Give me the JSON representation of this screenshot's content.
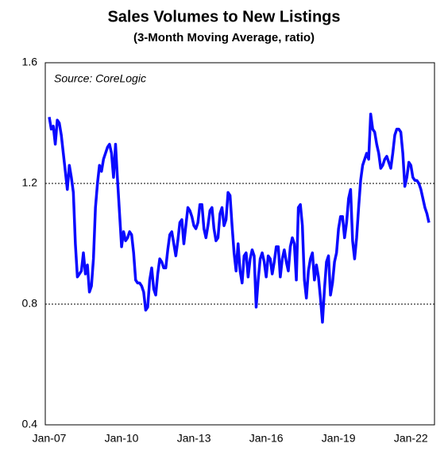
{
  "chart_data": {
    "type": "line",
    "title": "Sales Volumes to New Listings",
    "subtitle": "(3-Month Moving Average, ratio)",
    "annotation": "Source: CoreLogic",
    "color": "#0a0aff",
    "ylim": [
      0.4,
      1.6
    ],
    "yticks": [
      0.4,
      0.8,
      1.2,
      1.6
    ],
    "grid": true,
    "categories": [
      "Jan-07",
      null,
      null,
      null,
      null,
      null,
      null,
      null,
      null,
      null,
      null,
      null,
      null,
      null,
      null,
      null,
      null,
      null,
      null,
      null,
      null,
      null,
      null,
      null,
      null,
      null,
      null,
      null,
      null,
      null,
      null,
      null,
      null,
      null,
      null,
      null,
      "Jan-10",
      null,
      null,
      null,
      null,
      null,
      null,
      null,
      null,
      null,
      null,
      null,
      null,
      null,
      null,
      null,
      null,
      null,
      null,
      null,
      null,
      null,
      null,
      null,
      null,
      null,
      null,
      null,
      null,
      null,
      null,
      null,
      null,
      null,
      null,
      null,
      "Jan-13",
      null,
      null,
      null,
      null,
      null,
      null,
      null,
      null,
      null,
      null,
      null,
      null,
      null,
      null,
      null,
      null,
      null,
      null,
      null,
      null,
      null,
      null,
      null,
      null,
      null,
      null,
      null,
      null,
      null,
      null,
      null,
      null,
      null,
      null,
      null,
      "Jan-16",
      null,
      null,
      null,
      null,
      null,
      null,
      null,
      null,
      null,
      null,
      null,
      null,
      null,
      null,
      null,
      null,
      null,
      null,
      null,
      null,
      null,
      null,
      null,
      null,
      null,
      null,
      null,
      null,
      null,
      null,
      null,
      null,
      null,
      null,
      null,
      "Jan-19",
      null,
      null,
      null,
      null,
      null,
      null,
      null,
      null,
      null,
      null,
      null,
      null,
      null,
      null,
      null,
      null,
      null,
      null,
      null,
      null,
      null,
      null,
      null,
      null,
      null,
      null,
      null,
      null,
      null,
      null,
      null,
      null,
      null,
      null,
      null,
      "Jan-22",
      null,
      null,
      null,
      null,
      null,
      null,
      null,
      null,
      null
    ],
    "values": [
      1.42,
      1.38,
      1.39,
      1.33,
      1.41,
      1.4,
      1.36,
      1.3,
      1.24,
      1.18,
      1.26,
      1.22,
      1.17,
      1.0,
      0.89,
      0.9,
      0.91,
      0.97,
      0.9,
      0.93,
      0.84,
      0.86,
      0.95,
      1.12,
      1.2,
      1.26,
      1.24,
      1.28,
      1.3,
      1.32,
      1.33,
      1.3,
      1.22,
      1.33,
      1.21,
      1.1,
      0.99,
      1.04,
      1.01,
      1.02,
      1.04,
      1.03,
      0.97,
      0.88,
      0.87,
      0.87,
      0.86,
      0.84,
      0.78,
      0.79,
      0.88,
      0.92,
      0.85,
      0.83,
      0.9,
      0.95,
      0.94,
      0.92,
      0.92,
      0.98,
      1.03,
      1.04,
      1.0,
      0.96,
      1.01,
      1.07,
      1.08,
      1.0,
      1.06,
      1.12,
      1.11,
      1.09,
      1.06,
      1.05,
      1.07,
      1.13,
      1.13,
      1.05,
      1.02,
      1.06,
      1.11,
      1.12,
      1.05,
      1.01,
      1.02,
      1.1,
      1.12,
      1.06,
      1.08,
      1.17,
      1.16,
      1.06,
      0.97,
      0.91,
      1.0,
      0.91,
      0.87,
      0.96,
      0.97,
      0.89,
      0.95,
      0.98,
      0.96,
      0.79,
      0.88,
      0.95,
      0.97,
      0.94,
      0.89,
      0.96,
      0.95,
      0.9,
      0.94,
      0.99,
      0.99,
      0.89,
      0.95,
      0.98,
      0.94,
      0.91,
      0.99,
      1.02,
      1.0,
      0.88,
      1.12,
      1.13,
      1.06,
      0.88,
      0.82,
      0.91,
      0.95,
      0.97,
      0.88,
      0.93,
      0.89,
      0.82,
      0.74,
      0.85,
      0.94,
      0.96,
      0.83,
      0.87,
      0.94,
      0.97,
      1.05,
      1.09,
      1.09,
      1.02,
      1.07,
      1.15,
      1.18,
      1.01,
      0.95,
      1.02,
      1.12,
      1.21,
      1.26,
      1.28,
      1.3,
      1.28,
      1.43,
      1.38,
      1.37,
      1.33,
      1.3,
      1.25,
      1.26,
      1.28,
      1.29,
      1.27,
      1.25,
      1.3,
      1.36,
      1.38,
      1.38,
      1.37,
      1.3,
      1.19,
      1.22,
      1.27,
      1.26,
      1.22,
      1.21,
      1.21,
      1.2,
      1.18,
      1.15,
      1.12,
      1.1,
      1.07
    ]
  }
}
